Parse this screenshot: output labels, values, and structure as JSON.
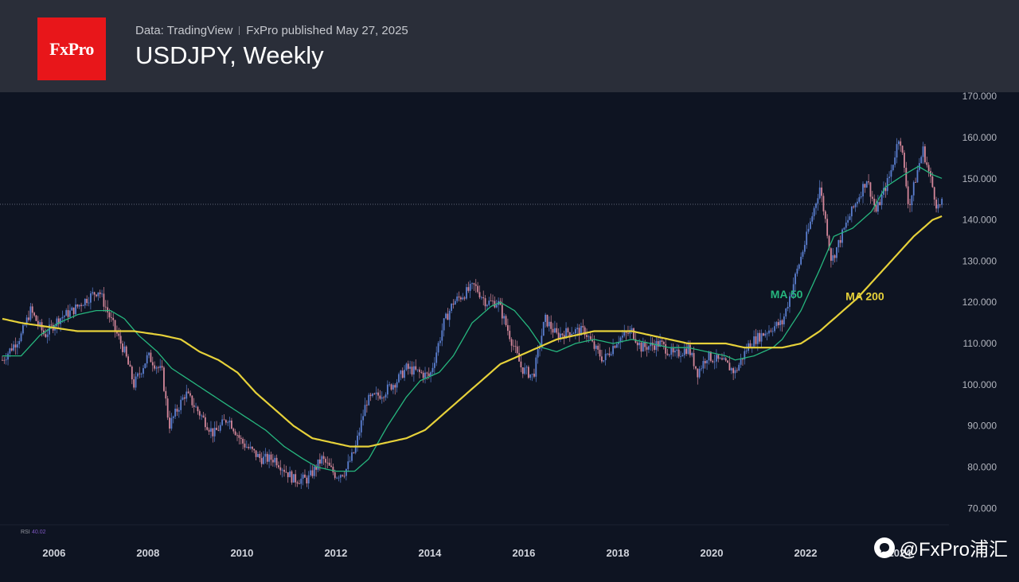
{
  "header": {
    "logo_text": "FxPro",
    "source": "Data: TradingView",
    "publisher": "FxPro published May 27, 2025",
    "title": "USDJPY, Weekly"
  },
  "watermark": {
    "icon": "chat-bubble-icon",
    "text": "@FxPro浦汇"
  },
  "rsi": {
    "label": "RSI",
    "value": "40.02"
  },
  "colors": {
    "background": "#0e1422",
    "header": "#2a2e39",
    "logo": "#e8161a",
    "candle_up": "#5b7fd0",
    "candle_down": "#d4879a",
    "ma50": "#26b67e",
    "ma200": "#e6d13a"
  },
  "chart_data": {
    "type": "line",
    "title": "USDJPY, Weekly",
    "ylim": [
      66,
      171
    ],
    "xlim": [
      2005.35,
      2025.55
    ],
    "y_ticks": [
      "170.000",
      "160.000",
      "150.000",
      "140.000",
      "130.000",
      "120.000",
      "110.000",
      "100.000",
      "90.000",
      "80.000",
      "70.000"
    ],
    "x_ticks": [
      "2006",
      "2008",
      "2010",
      "2012",
      "2014",
      "2016",
      "2018",
      "2020",
      "2022",
      "2024"
    ],
    "reference_line": 143.8,
    "series": [
      {
        "name": "",
        "kind": "price",
        "points": [
          [
            2005.4,
            106
          ],
          [
            2005.8,
            112
          ],
          [
            2006.0,
            118
          ],
          [
            2006.3,
            112
          ],
          [
            2006.6,
            116
          ],
          [
            2006.9,
            118
          ],
          [
            2007.1,
            120
          ],
          [
            2007.45,
            123
          ],
          [
            2007.7,
            116
          ],
          [
            2008.0,
            108
          ],
          [
            2008.2,
            100
          ],
          [
            2008.5,
            107
          ],
          [
            2008.8,
            103
          ],
          [
            2008.95,
            90
          ],
          [
            2009.3,
            98
          ],
          [
            2009.6,
            93
          ],
          [
            2009.9,
            88
          ],
          [
            2010.2,
            92
          ],
          [
            2010.5,
            86
          ],
          [
            2010.9,
            82
          ],
          [
            2011.2,
            82
          ],
          [
            2011.6,
            77
          ],
          [
            2011.9,
            77
          ],
          [
            2012.2,
            82
          ],
          [
            2012.5,
            78
          ],
          [
            2012.7,
            79
          ],
          [
            2012.9,
            84
          ],
          [
            2013.15,
            96
          ],
          [
            2013.5,
            98
          ],
          [
            2013.8,
            101
          ],
          [
            2014.0,
            104
          ],
          [
            2014.5,
            102
          ],
          [
            2014.8,
            115
          ],
          [
            2015.0,
            120
          ],
          [
            2015.45,
            124
          ],
          [
            2015.7,
            120
          ],
          [
            2015.95,
            120
          ],
          [
            2016.2,
            112
          ],
          [
            2016.45,
            104
          ],
          [
            2016.7,
            102
          ],
          [
            2016.95,
            116
          ],
          [
            2017.2,
            112
          ],
          [
            2017.5,
            113
          ],
          [
            2017.8,
            113
          ],
          [
            2018.0,
            109
          ],
          [
            2018.2,
            106
          ],
          [
            2018.5,
            111
          ],
          [
            2018.8,
            113
          ],
          [
            2019.0,
            109
          ],
          [
            2019.4,
            110
          ],
          [
            2019.7,
            107
          ],
          [
            2020.0,
            109
          ],
          [
            2020.2,
            103
          ],
          [
            2020.4,
            107
          ],
          [
            2020.8,
            105
          ],
          [
            2021.0,
            103
          ],
          [
            2021.3,
            110
          ],
          [
            2021.8,
            114
          ],
          [
            2022.0,
            115
          ],
          [
            2022.2,
            123
          ],
          [
            2022.5,
            135
          ],
          [
            2022.8,
            148
          ],
          [
            2022.95,
            138
          ],
          [
            2023.05,
            130
          ],
          [
            2023.4,
            140
          ],
          [
            2023.8,
            150
          ],
          [
            2024.0,
            142
          ],
          [
            2024.3,
            151
          ],
          [
            2024.5,
            161
          ],
          [
            2024.7,
            143
          ],
          [
            2024.9,
            153
          ],
          [
            2025.0,
            157
          ],
          [
            2025.2,
            148
          ],
          [
            2025.3,
            143
          ],
          [
            2025.42,
            144
          ]
        ]
      },
      {
        "name": "MA 50",
        "points": [
          [
            2005.4,
            107
          ],
          [
            2005.8,
            107
          ],
          [
            2006.2,
            112
          ],
          [
            2006.6,
            115
          ],
          [
            2007.0,
            117
          ],
          [
            2007.4,
            118
          ],
          [
            2007.7,
            118
          ],
          [
            2008.0,
            116
          ],
          [
            2008.3,
            112
          ],
          [
            2008.7,
            108
          ],
          [
            2009.0,
            104
          ],
          [
            2009.4,
            101
          ],
          [
            2009.8,
            98
          ],
          [
            2010.2,
            95
          ],
          [
            2010.6,
            92
          ],
          [
            2011.0,
            89
          ],
          [
            2011.4,
            85
          ],
          [
            2011.8,
            82
          ],
          [
            2012.1,
            80
          ],
          [
            2012.5,
            79
          ],
          [
            2012.9,
            79
          ],
          [
            2013.2,
            82
          ],
          [
            2013.6,
            90
          ],
          [
            2014.0,
            97
          ],
          [
            2014.3,
            101
          ],
          [
            2014.7,
            103
          ],
          [
            2015.0,
            107
          ],
          [
            2015.4,
            115
          ],
          [
            2015.8,
            119
          ],
          [
            2016.0,
            120
          ],
          [
            2016.3,
            118
          ],
          [
            2016.6,
            114
          ],
          [
            2016.9,
            109
          ],
          [
            2017.2,
            108
          ],
          [
            2017.6,
            110
          ],
          [
            2018.0,
            111
          ],
          [
            2018.4,
            110
          ],
          [
            2018.8,
            111
          ],
          [
            2019.2,
            110
          ],
          [
            2019.6,
            109
          ],
          [
            2020.0,
            109
          ],
          [
            2020.4,
            108
          ],
          [
            2020.8,
            107
          ],
          [
            2021.0,
            106
          ],
          [
            2021.4,
            107
          ],
          [
            2021.8,
            109
          ],
          [
            2022.0,
            111
          ],
          [
            2022.4,
            118
          ],
          [
            2022.8,
            128
          ],
          [
            2023.1,
            136
          ],
          [
            2023.5,
            138
          ],
          [
            2023.9,
            142
          ],
          [
            2024.2,
            148
          ],
          [
            2024.6,
            151
          ],
          [
            2024.9,
            153
          ],
          [
            2025.2,
            151
          ],
          [
            2025.42,
            150
          ]
        ]
      },
      {
        "name": "MA 200",
        "points": [
          [
            2005.4,
            116
          ],
          [
            2005.8,
            115
          ],
          [
            2006.4,
            114
          ],
          [
            2007.0,
            113
          ],
          [
            2007.6,
            113
          ],
          [
            2008.2,
            113
          ],
          [
            2008.8,
            112
          ],
          [
            2009.2,
            111
          ],
          [
            2009.6,
            108
          ],
          [
            2010.0,
            106
          ],
          [
            2010.4,
            103
          ],
          [
            2010.8,
            98
          ],
          [
            2011.2,
            94
          ],
          [
            2011.6,
            90
          ],
          [
            2012.0,
            87
          ],
          [
            2012.4,
            86
          ],
          [
            2012.8,
            85
          ],
          [
            2013.2,
            85
          ],
          [
            2013.6,
            86
          ],
          [
            2014.0,
            87
          ],
          [
            2014.4,
            89
          ],
          [
            2014.8,
            93
          ],
          [
            2015.2,
            97
          ],
          [
            2015.6,
            101
          ],
          [
            2016.0,
            105
          ],
          [
            2016.4,
            107
          ],
          [
            2016.8,
            109
          ],
          [
            2017.2,
            111
          ],
          [
            2017.6,
            112
          ],
          [
            2018.0,
            113
          ],
          [
            2018.4,
            113
          ],
          [
            2018.8,
            113
          ],
          [
            2019.2,
            112
          ],
          [
            2019.6,
            111
          ],
          [
            2020.0,
            110
          ],
          [
            2020.4,
            110
          ],
          [
            2020.8,
            110
          ],
          [
            2021.2,
            109
          ],
          [
            2021.6,
            109
          ],
          [
            2022.0,
            109
          ],
          [
            2022.4,
            110
          ],
          [
            2022.8,
            113
          ],
          [
            2023.2,
            117
          ],
          [
            2023.6,
            121
          ],
          [
            2024.0,
            126
          ],
          [
            2024.4,
            131
          ],
          [
            2024.8,
            136
          ],
          [
            2025.2,
            140
          ],
          [
            2025.42,
            141
          ]
        ]
      }
    ],
    "annotations": [
      {
        "text": "MA 50",
        "x": 2021.75,
        "y": 121,
        "color": "#26b67e"
      },
      {
        "text": "MA 200",
        "x": 2023.35,
        "y": 120.5,
        "color": "#e6d13a"
      }
    ]
  }
}
